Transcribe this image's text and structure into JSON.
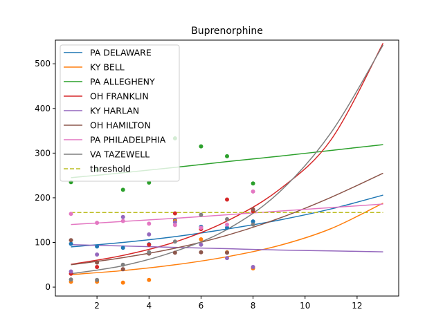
{
  "chart_data": {
    "type": "scatter",
    "title": "Buprenorphine",
    "xlabel": "",
    "ylabel": "",
    "xlim": [
      0.4,
      13.6
    ],
    "ylim": [
      -20,
      553
    ],
    "xticks": [
      2,
      4,
      6,
      8,
      10,
      12
    ],
    "yticks": [
      0,
      100,
      200,
      300,
      400,
      500
    ],
    "grid": false,
    "legend_position": "top-left",
    "threshold": {
      "name": "threshold",
      "value": 167,
      "color": "#bcbd22",
      "style": "dashed"
    },
    "series": [
      {
        "name": "PA DELAWARE",
        "color": "#1f77b4",
        "points": [
          [
            1,
            97
          ],
          [
            2,
            91
          ],
          [
            3,
            88
          ],
          [
            4,
            96
          ],
          [
            5,
            150
          ],
          [
            6,
            135
          ],
          [
            7,
            133
          ],
          [
            8,
            147
          ]
        ],
        "fit": [
          [
            1,
            90
          ],
          [
            3,
            100
          ],
          [
            5,
            113
          ],
          [
            7,
            130
          ],
          [
            9,
            150
          ],
          [
            11,
            175
          ],
          [
            13,
            206
          ]
        ]
      },
      {
        "name": "KY BELL",
        "color": "#ff7f0e",
        "points": [
          [
            1,
            12
          ],
          [
            2,
            12
          ],
          [
            3,
            10
          ],
          [
            4,
            16
          ],
          [
            5,
            148
          ],
          [
            6,
            107
          ],
          [
            7,
            78
          ],
          [
            8,
            42
          ]
        ],
        "fit": [
          [
            1,
            28
          ],
          [
            3,
            37
          ],
          [
            5,
            50
          ],
          [
            7,
            68
          ],
          [
            9,
            93
          ],
          [
            11,
            131
          ],
          [
            13,
            188
          ]
        ]
      },
      {
        "name": "PA ALLEGHENY",
        "color": "#2ca02c",
        "points": [
          [
            1,
            235
          ],
          [
            2,
            262
          ],
          [
            3,
            218
          ],
          [
            4,
            234
          ],
          [
            5,
            333
          ],
          [
            6,
            315
          ],
          [
            7,
            293
          ],
          [
            8,
            232
          ]
        ],
        "fit": [
          [
            1,
            245
          ],
          [
            3,
            256
          ],
          [
            5,
            268
          ],
          [
            7,
            281
          ],
          [
            9,
            293
          ],
          [
            11,
            306
          ],
          [
            13,
            319
          ]
        ]
      },
      {
        "name": "OH FRANKLIN",
        "color": "#d62728",
        "points": [
          [
            1,
            30
          ],
          [
            2,
            45
          ],
          [
            3,
            40
          ],
          [
            4,
            95
          ],
          [
            5,
            165
          ],
          [
            6,
            130
          ],
          [
            7,
            196
          ],
          [
            8,
            170
          ]
        ],
        "fit": [
          [
            1,
            51
          ],
          [
            3,
            71
          ],
          [
            5,
            101
          ],
          [
            7,
            148
          ],
          [
            9,
            218
          ],
          [
            11,
            330
          ],
          [
            13,
            546
          ]
        ]
      },
      {
        "name": "KY HARLAN",
        "color": "#9467bd",
        "points": [
          [
            1,
            35
          ],
          [
            2,
            73
          ],
          [
            3,
            157
          ],
          [
            4,
            118
          ],
          [
            5,
            145
          ],
          [
            6,
            95
          ],
          [
            7,
            65
          ],
          [
            8,
            45
          ]
        ],
        "fit": [
          [
            1,
            95
          ],
          [
            3,
            92
          ],
          [
            5,
            89
          ],
          [
            7,
            86
          ],
          [
            9,
            83
          ],
          [
            11,
            81
          ],
          [
            13,
            79
          ]
        ]
      },
      {
        "name": "OH HAMILTON",
        "color": "#8c564b",
        "points": [
          [
            1,
            105
          ],
          [
            2,
            55
          ],
          [
            3,
            40
          ],
          [
            4,
            75
          ],
          [
            5,
            77
          ],
          [
            6,
            78
          ],
          [
            7,
            77
          ],
          [
            8,
            174
          ]
        ],
        "fit": [
          [
            1,
            50
          ],
          [
            3,
            66
          ],
          [
            5,
            87
          ],
          [
            7,
            116
          ],
          [
            9,
            154
          ],
          [
            11,
            201
          ],
          [
            13,
            255
          ]
        ]
      },
      {
        "name": "PA PHILADELPHIA",
        "color": "#e377c2",
        "points": [
          [
            1,
            164
          ],
          [
            2,
            144
          ],
          [
            3,
            148
          ],
          [
            4,
            142
          ],
          [
            5,
            139
          ],
          [
            6,
            133
          ],
          [
            7,
            140
          ],
          [
            8,
            214
          ]
        ],
        "fit": [
          [
            1,
            140
          ],
          [
            3,
            147
          ],
          [
            5,
            154
          ],
          [
            7,
            162
          ],
          [
            9,
            170
          ],
          [
            11,
            178
          ],
          [
            13,
            186
          ]
        ]
      },
      {
        "name": "VA TAZEWELL",
        "color": "#7f7f7f",
        "points": [
          [
            1,
            17
          ],
          [
            2,
            16
          ],
          [
            3,
            50
          ],
          [
            4,
            78
          ],
          [
            5,
            102
          ],
          [
            6,
            162
          ],
          [
            7,
            152
          ],
          [
            8,
            140
          ]
        ],
        "fit": [
          [
            1,
            30
          ],
          [
            3,
            48
          ],
          [
            5,
            80
          ],
          [
            7,
            129
          ],
          [
            9,
            212
          ],
          [
            11,
            346
          ],
          [
            13,
            542
          ]
        ]
      }
    ]
  }
}
